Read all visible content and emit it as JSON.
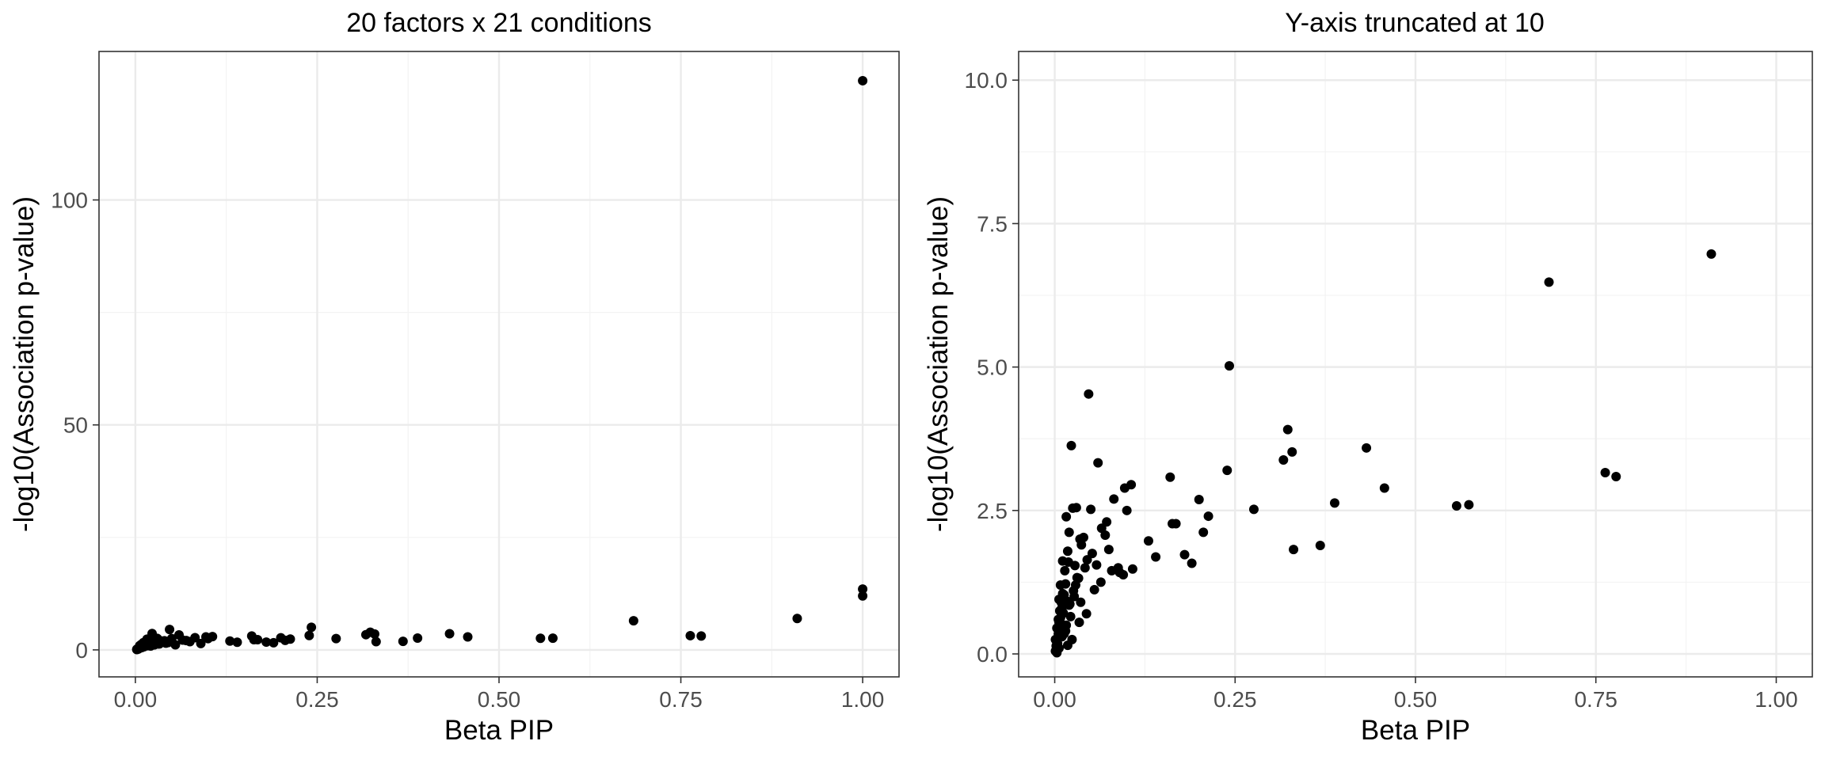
{
  "chart_data": [
    {
      "type": "scatter",
      "title": "20 factors x 21 conditions",
      "xlabel": "Beta PIP",
      "ylabel": "-log10(Association p-value)",
      "xlim": [
        -0.05,
        1.05
      ],
      "ylim": [
        -6,
        133
      ],
      "xticks": [
        0,
        0.25,
        0.5,
        0.75,
        1.0
      ],
      "xtick_labels": [
        "0.00",
        "0.25",
        "0.50",
        "0.75",
        "1.00"
      ],
      "yticks": [
        0,
        50,
        100
      ],
      "ytick_labels": [
        "0",
        "50",
        "100"
      ],
      "grid": true,
      "point_color": "#000000",
      "x": [
        1.0,
        1.0,
        1.0,
        0.91,
        0.685,
        0.763,
        0.778,
        0.557,
        0.574,
        0.457,
        0.432,
        0.388,
        0.368,
        0.331,
        0.323,
        0.317,
        0.329,
        0.276,
        0.242,
        0.239,
        0.213,
        0.206,
        0.2,
        0.19,
        0.18,
        0.163,
        0.16,
        0.168,
        0.13,
        0.14,
        0.106,
        0.1,
        0.097,
        0.09,
        0.082,
        0.075,
        0.07,
        0.065,
        0.06,
        0.055,
        0.05,
        0.047,
        0.045,
        0.04,
        0.035,
        0.033,
        0.03,
        0.028,
        0.025,
        0.023,
        0.02,
        0.018,
        0.016,
        0.015,
        0.013,
        0.011,
        0.01,
        0.009,
        0.008,
        0.007,
        0.006,
        0.005,
        0.004,
        0.003,
        0.002,
        0.002,
        0.004,
        0.006,
        0.008,
        0.012,
        0.014,
        0.017,
        0.019,
        0.021,
        0.026,
        0.031,
        0.037,
        0.042
      ],
      "y": [
        126.5,
        13.5,
        12.0,
        6.97,
        6.48,
        3.16,
        3.09,
        2.58,
        2.6,
        2.89,
        3.59,
        2.63,
        1.89,
        1.82,
        3.91,
        3.38,
        3.52,
        2.52,
        5.02,
        3.2,
        2.4,
        2.12,
        2.69,
        1.58,
        1.73,
        2.27,
        3.08,
        2.27,
        1.97,
        1.69,
        2.95,
        2.5,
        2.89,
        1.42,
        2.7,
        1.82,
        2.07,
        2.19,
        3.33,
        1.12,
        2.52,
        4.53,
        1.64,
        2.03,
        2.0,
        1.32,
        2.55,
        1.54,
        2.54,
        3.63,
        2.12,
        1.79,
        2.39,
        1.22,
        1.03,
        1.62,
        0.8,
        0.52,
        0.63,
        0.44,
        0.55,
        0.35,
        0.28,
        0.22,
        0.14,
        0.06,
        0.18,
        0.95,
        1.2,
        0.71,
        1.45,
        0.92,
        1.6,
        0.87,
        1.1,
        1.33,
        1.9,
        1.5
      ]
    },
    {
      "type": "scatter",
      "title": "Y-axis truncated at 10",
      "xlabel": "Beta PIP",
      "ylabel": "-log10(Association p-value)",
      "xlim": [
        -0.05,
        1.05
      ],
      "ylim": [
        -0.4,
        10.5
      ],
      "xticks": [
        0,
        0.25,
        0.5,
        0.75,
        1.0
      ],
      "xtick_labels": [
        "0.00",
        "0.25",
        "0.50",
        "0.75",
        "1.00"
      ],
      "yticks": [
        0,
        2.5,
        5,
        7.5,
        10
      ],
      "ytick_labels": [
        "0.0",
        "2.5",
        "5.0",
        "7.5",
        "10.0"
      ],
      "grid": true,
      "point_color": "#000000",
      "x": [
        0.91,
        0.685,
        0.763,
        0.778,
        0.557,
        0.574,
        0.457,
        0.432,
        0.388,
        0.368,
        0.331,
        0.323,
        0.317,
        0.329,
        0.276,
        0.242,
        0.239,
        0.213,
        0.206,
        0.2,
        0.19,
        0.18,
        0.163,
        0.16,
        0.168,
        0.13,
        0.14,
        0.106,
        0.1,
        0.097,
        0.09,
        0.082,
        0.075,
        0.07,
        0.065,
        0.06,
        0.055,
        0.05,
        0.047,
        0.045,
        0.04,
        0.035,
        0.033,
        0.03,
        0.028,
        0.025,
        0.023,
        0.02,
        0.018,
        0.016,
        0.015,
        0.013,
        0.011,
        0.01,
        0.009,
        0.008,
        0.007,
        0.006,
        0.005,
        0.004,
        0.003,
        0.002,
        0.002,
        0.004,
        0.006,
        0.008,
        0.012,
        0.014,
        0.017,
        0.019,
        0.021,
        0.026,
        0.031,
        0.037,
        0.042,
        0.052,
        0.058,
        0.064,
        0.079,
        0.095,
        0.108,
        0.088,
        0.072,
        0.044,
        0.036,
        0.027,
        0.022,
        0.015,
        0.01,
        0.006,
        0.003,
        0.001,
        0.001,
        0.003,
        0.005,
        0.007,
        0.009,
        0.011,
        0.013,
        0.016,
        0.018,
        0.02,
        0.024,
        0.029,
        0.034
      ],
      "y": [
        6.97,
        6.48,
        3.16,
        3.09,
        2.58,
        2.6,
        2.89,
        3.59,
        2.63,
        1.89,
        1.82,
        3.91,
        3.38,
        3.52,
        2.52,
        5.02,
        3.2,
        2.4,
        2.12,
        2.69,
        1.58,
        1.73,
        2.27,
        3.08,
        2.27,
        1.97,
        1.69,
        2.95,
        2.5,
        2.89,
        1.42,
        2.7,
        1.82,
        2.07,
        2.19,
        3.33,
        1.12,
        2.52,
        4.53,
        1.64,
        2.03,
        2.0,
        1.32,
        2.55,
        1.54,
        2.54,
        3.63,
        2.12,
        1.79,
        2.39,
        1.22,
        1.03,
        1.62,
        0.8,
        0.52,
        0.63,
        0.44,
        0.55,
        0.35,
        0.28,
        0.22,
        0.14,
        0.06,
        0.18,
        0.95,
        1.2,
        0.71,
        1.45,
        0.92,
        1.6,
        0.87,
        1.1,
        1.33,
        1.9,
        1.5,
        1.75,
        1.55,
        1.25,
        1.45,
        1.38,
        1.48,
        1.5,
        2.3,
        0.7,
        0.9,
        1.0,
        0.65,
        0.4,
        0.3,
        0.1,
        0.02,
        0.05,
        0.25,
        0.45,
        0.6,
        0.75,
        0.9,
        1.05,
        0.35,
        0.5,
        0.15,
        0.85,
        0.25,
        1.2,
        0.55
      ]
    }
  ]
}
